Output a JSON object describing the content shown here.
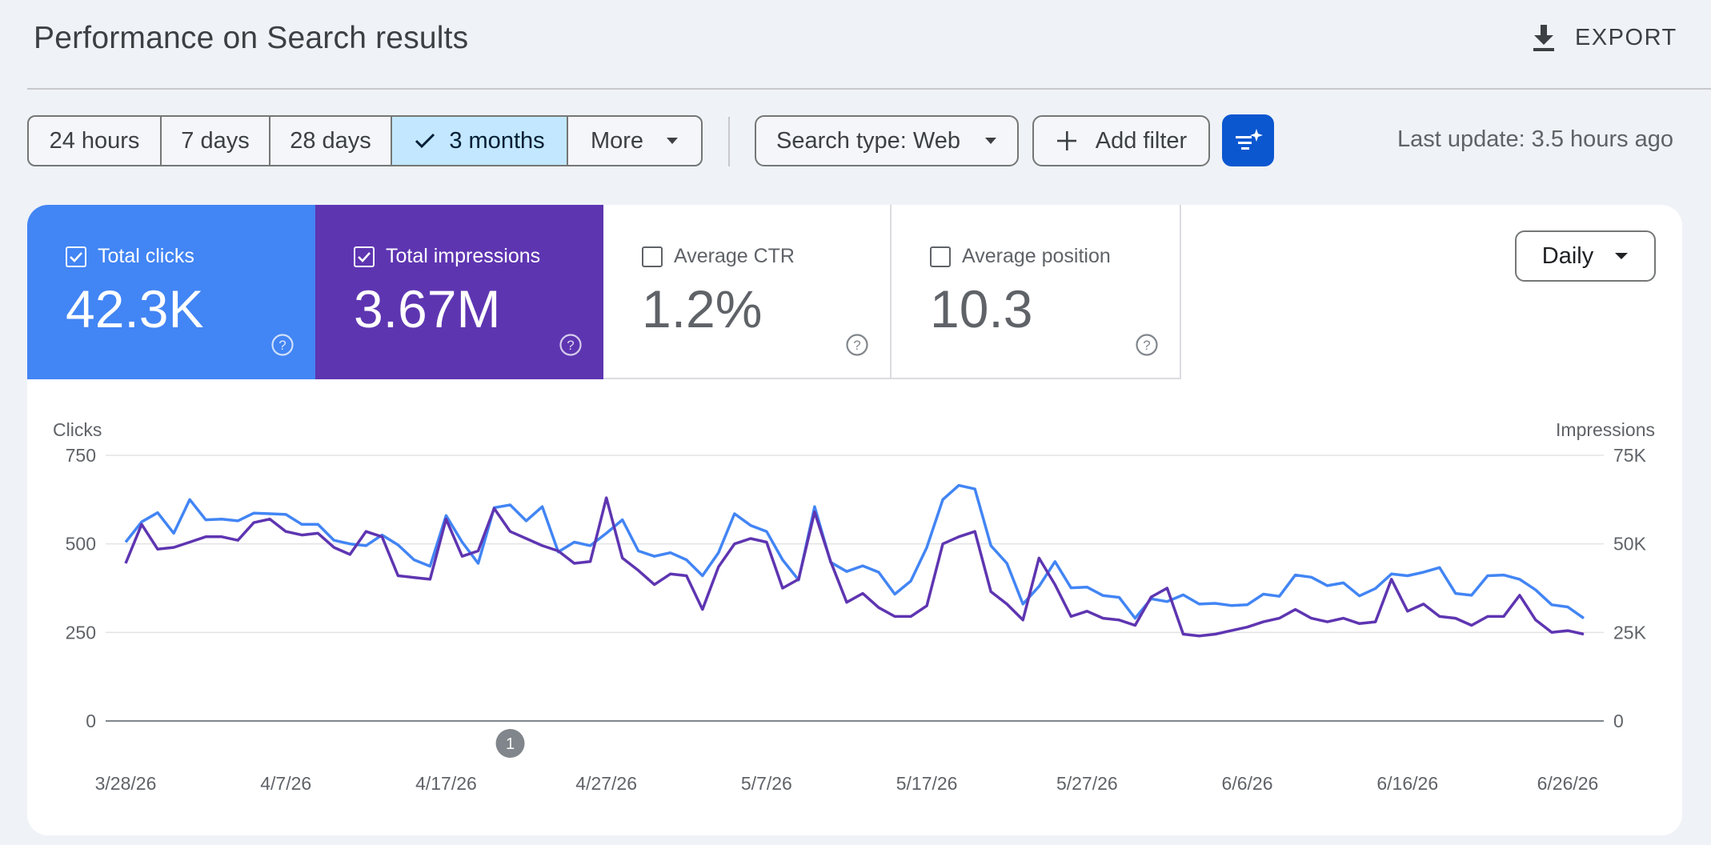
{
  "header": {
    "title": "Performance on Search results",
    "export_label": "EXPORT"
  },
  "toolbar": {
    "ranges": [
      "24 hours",
      "7 days",
      "28 days",
      "3 months",
      "More"
    ],
    "selected_range": "3 months",
    "search_type": "Search type: Web",
    "add_filter": "Add filter",
    "last_update": "Last update: 3.5 hours ago"
  },
  "metrics": {
    "clicks": {
      "label": "Total clicks",
      "value": "42.3K",
      "checked": true,
      "color": "#4285f4"
    },
    "impressions": {
      "label": "Total impressions",
      "value": "3.67M",
      "checked": true,
      "color": "#5e35b1"
    },
    "ctr": {
      "label": "Average CTR",
      "value": "1.2%",
      "checked": false
    },
    "position": {
      "label": "Average position",
      "value": "10.3",
      "checked": false
    }
  },
  "granularity": "Daily",
  "annotation": {
    "label": "1",
    "date": "4/21/26"
  },
  "chart_data": {
    "type": "line",
    "x_tick_labels": [
      "3/28/26",
      "4/7/26",
      "4/17/26",
      "4/27/26",
      "5/7/26",
      "5/17/26",
      "5/27/26",
      "6/6/26",
      "6/16/26",
      "6/26/26"
    ],
    "x_start": "3/28/26",
    "x_end": "6/27/26",
    "left_axis": {
      "label": "Clicks",
      "ticks": [
        "0",
        "250",
        "500",
        "750"
      ],
      "range": [
        0,
        750
      ]
    },
    "right_axis": {
      "label": "Impressions",
      "ticks": [
        "0",
        "25K",
        "50K",
        "75K"
      ],
      "range": [
        0,
        75000
      ]
    },
    "grid": true,
    "series": [
      {
        "name": "Total clicks",
        "axis": "left",
        "color": "#4285f4",
        "values": [
          505,
          562,
          588,
          530,
          625,
          568,
          570,
          565,
          587,
          585,
          583,
          555,
          555,
          510,
          500,
          495,
          525,
          497,
          455,
          437,
          580,
          505,
          445,
          602,
          610,
          565,
          605,
          477,
          505,
          495,
          530,
          568,
          480,
          465,
          475,
          455,
          410,
          475,
          585,
          552,
          535,
          455,
          398,
          605,
          448,
          422,
          438,
          420,
          358,
          395,
          490,
          625,
          665,
          655,
          495,
          445,
          330,
          380,
          450,
          376,
          378,
          354,
          349,
          290,
          345,
          337,
          356,
          330,
          332,
          326,
          328,
          358,
          352,
          412,
          406,
          382,
          390,
          353,
          374,
          415,
          410,
          420,
          433,
          360,
          355,
          410,
          412,
          400,
          370,
          328,
          322,
          290
        ]
      },
      {
        "name": "Total impressions",
        "axis": "right",
        "color": "#5e35b1",
        "values": [
          44500,
          55500,
          48500,
          49000,
          50500,
          52000,
          52000,
          51000,
          56000,
          57000,
          53500,
          52500,
          53000,
          49000,
          47000,
          53500,
          52000,
          41000,
          40500,
          40000,
          57000,
          46500,
          48000,
          60000,
          53500,
          51500,
          49500,
          48000,
          44500,
          45000,
          63000,
          46000,
          42500,
          38500,
          41500,
          41000,
          31500,
          43500,
          50000,
          51500,
          50500,
          37500,
          40000,
          59000,
          45000,
          33500,
          36000,
          32000,
          29500,
          29500,
          32500,
          50000,
          52000,
          53500,
          36500,
          33000,
          28500,
          46000,
          38500,
          29500,
          31000,
          29000,
          28500,
          27000,
          35000,
          37500,
          24500,
          24000,
          24500,
          25500,
          26500,
          28000,
          29000,
          31500,
          29000,
          28000,
          29000,
          27500,
          28000,
          40000,
          31000,
          33000,
          29500,
          29000,
          27000,
          29500,
          29500,
          35500,
          28500,
          25000,
          25500,
          24500
        ]
      }
    ]
  }
}
